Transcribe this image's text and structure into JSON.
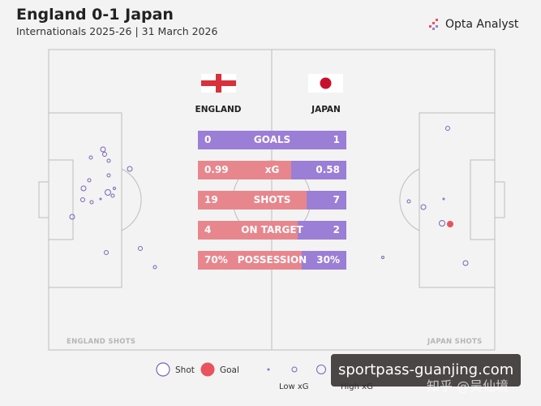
{
  "header": {
    "title": "England 0-1 Japan",
    "subtitle": "Internationals 2025-26 | 31 March 2026",
    "brand": "Opta Analyst"
  },
  "teams": {
    "home": {
      "name": "ENGLAND",
      "flag": "england-flag",
      "color": "#e8868d"
    },
    "away": {
      "name": "JAPAN",
      "flag": "japan-flag",
      "color": "#9b7ed6"
    }
  },
  "chart_data": {
    "type": "table",
    "stats": [
      {
        "label": "GOALS",
        "home": "0",
        "away": "1",
        "home_share": 0.0
      },
      {
        "label": "xG",
        "home": "0.99",
        "away": "0.58",
        "home_share": 0.63
      },
      {
        "label": "SHOTS",
        "home": "19",
        "away": "7",
        "home_share": 0.73
      },
      {
        "label": "ON TARGET",
        "home": "4",
        "away": "2",
        "home_share": 0.67
      },
      {
        "label": "POSSESSION",
        "home": "70%",
        "away": "30%",
        "home_share": 0.7
      }
    ]
  },
  "shot_maps": {
    "home_label": "ENGLAND SHOTS",
    "away_label": "JAPAN SHOTS"
  },
  "legend": {
    "shot": "Shot",
    "goal": "Goal",
    "low_xg": "Low xG",
    "high_xg": "High xG",
    "goal_color": "#e8535e",
    "shot_color": "#7a63b8"
  },
  "watermark": {
    "text": "sportpass-guanjing.com",
    "text2": "知乎 @吴仙境"
  }
}
